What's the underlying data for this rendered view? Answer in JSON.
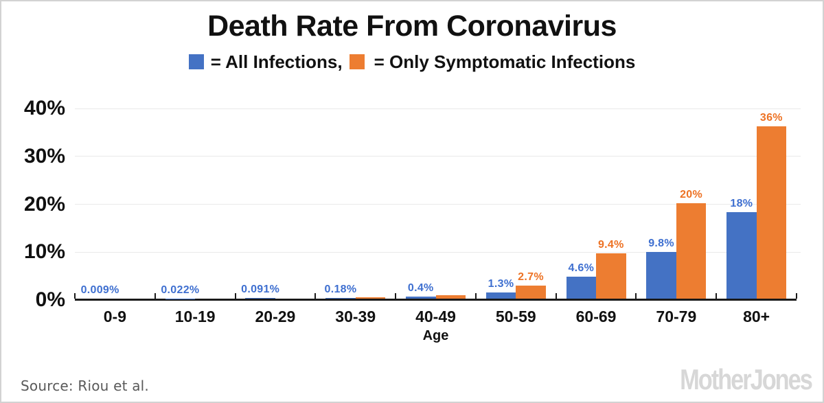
{
  "title": "Death Rate From Coronavirus",
  "legend": {
    "all_label": "= All Infections,",
    "symptomatic_label": "= Only Symptomatic Infections",
    "all_color": "#4472C4",
    "symptomatic_color": "#ED7D31"
  },
  "chart_data": {
    "type": "bar",
    "title": "Death Rate From Coronavirus",
    "categories": [
      "0-9",
      "10-19",
      "20-29",
      "30-39",
      "40-49",
      "50-59",
      "60-69",
      "70-79",
      "80+"
    ],
    "series": [
      {
        "name": "All Infections",
        "color": "#4472C4",
        "label_color": "#3E6FD0",
        "values": [
          0.009,
          0.022,
          0.091,
          0.18,
          0.4,
          1.3,
          4.6,
          9.8,
          18
        ],
        "labels": [
          "0.009%",
          "0.022%",
          "0.091%",
          "0.18%",
          "0.4%",
          "1.3%",
          "4.6%",
          "9.8%",
          "18%"
        ]
      },
      {
        "name": "Only Symptomatic Infections",
        "color": "#ED7D31",
        "label_color": "#ED7224",
        "values": [
          null,
          null,
          null,
          0.33,
          0.75,
          2.7,
          9.4,
          20,
          36
        ],
        "labels": [
          "",
          "",
          "",
          "",
          "",
          "2.7%",
          "9.4%",
          "20%",
          "36%"
        ]
      }
    ],
    "xlabel": "Age",
    "ylabel": "",
    "ylim": [
      0,
      40
    ],
    "y_tick_values": [
      40,
      30,
      20,
      10,
      0
    ],
    "y_tick_labels": [
      "40%",
      "30%",
      "20%",
      "10%",
      "0%"
    ],
    "grid": true,
    "legend_position": "top"
  },
  "footer": {
    "source": "Source: Riou et al.",
    "logo": "MotherJones"
  }
}
